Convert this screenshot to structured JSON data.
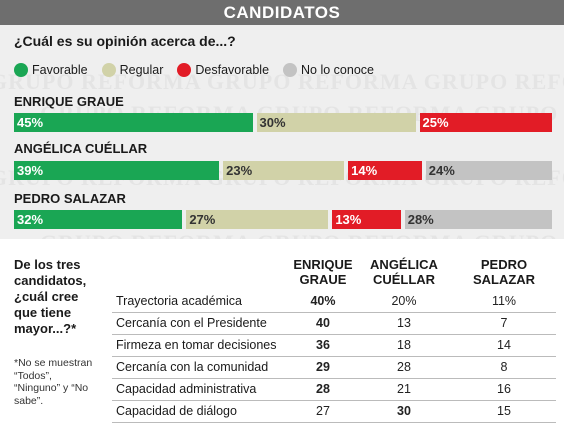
{
  "header": {
    "title": "CANDIDATOS"
  },
  "watermark": {
    "text": "GRUPO REFORMA"
  },
  "chart_data": {
    "type": "bar",
    "question": "¿Cuál es su opinión acerca de...?",
    "legend": [
      {
        "label": "Favorable",
        "color": "#1aa654"
      },
      {
        "label": "Regular",
        "color": "#d1d2a8"
      },
      {
        "label": "Desfavorable",
        "color": "#e21c26"
      },
      {
        "label": "No lo conoce",
        "color": "#c3c3c3"
      }
    ],
    "stacked": true,
    "candidates": [
      {
        "name": "ENRIQUE GRAUE",
        "values": [
          45,
          30,
          25,
          0
        ],
        "labels": [
          "45%",
          "30%",
          "25%",
          ""
        ]
      },
      {
        "name": "ANGÉLICA CUÉLLAR",
        "values": [
          39,
          23,
          14,
          24
        ],
        "labels": [
          "39%",
          "23%",
          "14%",
          "24%"
        ]
      },
      {
        "name": "PEDRO SALAZAR",
        "values": [
          32,
          27,
          13,
          28
        ],
        "labels": [
          "32%",
          "27%",
          "13%",
          "28%"
        ]
      }
    ]
  },
  "table": {
    "question": "De los tres candidatos, ¿cuál cree que tiene mayor...?*",
    "footnote": "*No se muestran “Todos”, “Ninguno” y “No sabe”.",
    "columns": [
      {
        "line1": "ENRIQUE",
        "line2": "GRAUE"
      },
      {
        "line1": "ANGÉLICA",
        "line2": "CUÉLLAR"
      },
      {
        "line1": "PEDRO",
        "line2": "SALAZAR"
      }
    ],
    "rows": [
      {
        "label": "Trayectoria académica",
        "values": [
          "40%",
          "20%",
          "11%"
        ],
        "bold": [
          true,
          false,
          false
        ]
      },
      {
        "label": "Cercanía con el Presidente",
        "values": [
          "40",
          "13",
          "7"
        ],
        "bold": [
          true,
          false,
          false
        ]
      },
      {
        "label": "Firmeza en tomar decisiones",
        "values": [
          "36",
          "18",
          "14"
        ],
        "bold": [
          true,
          false,
          false
        ]
      },
      {
        "label": "Cercanía con la comunidad",
        "values": [
          "29",
          "28",
          "8"
        ],
        "bold": [
          true,
          false,
          false
        ]
      },
      {
        "label": "Capacidad administrativa",
        "values": [
          "28",
          "21",
          "16"
        ],
        "bold": [
          true,
          false,
          false
        ]
      },
      {
        "label": "Capacidad de diálogo",
        "values": [
          "27",
          "30",
          "15"
        ],
        "bold": [
          false,
          true,
          false
        ]
      }
    ]
  }
}
